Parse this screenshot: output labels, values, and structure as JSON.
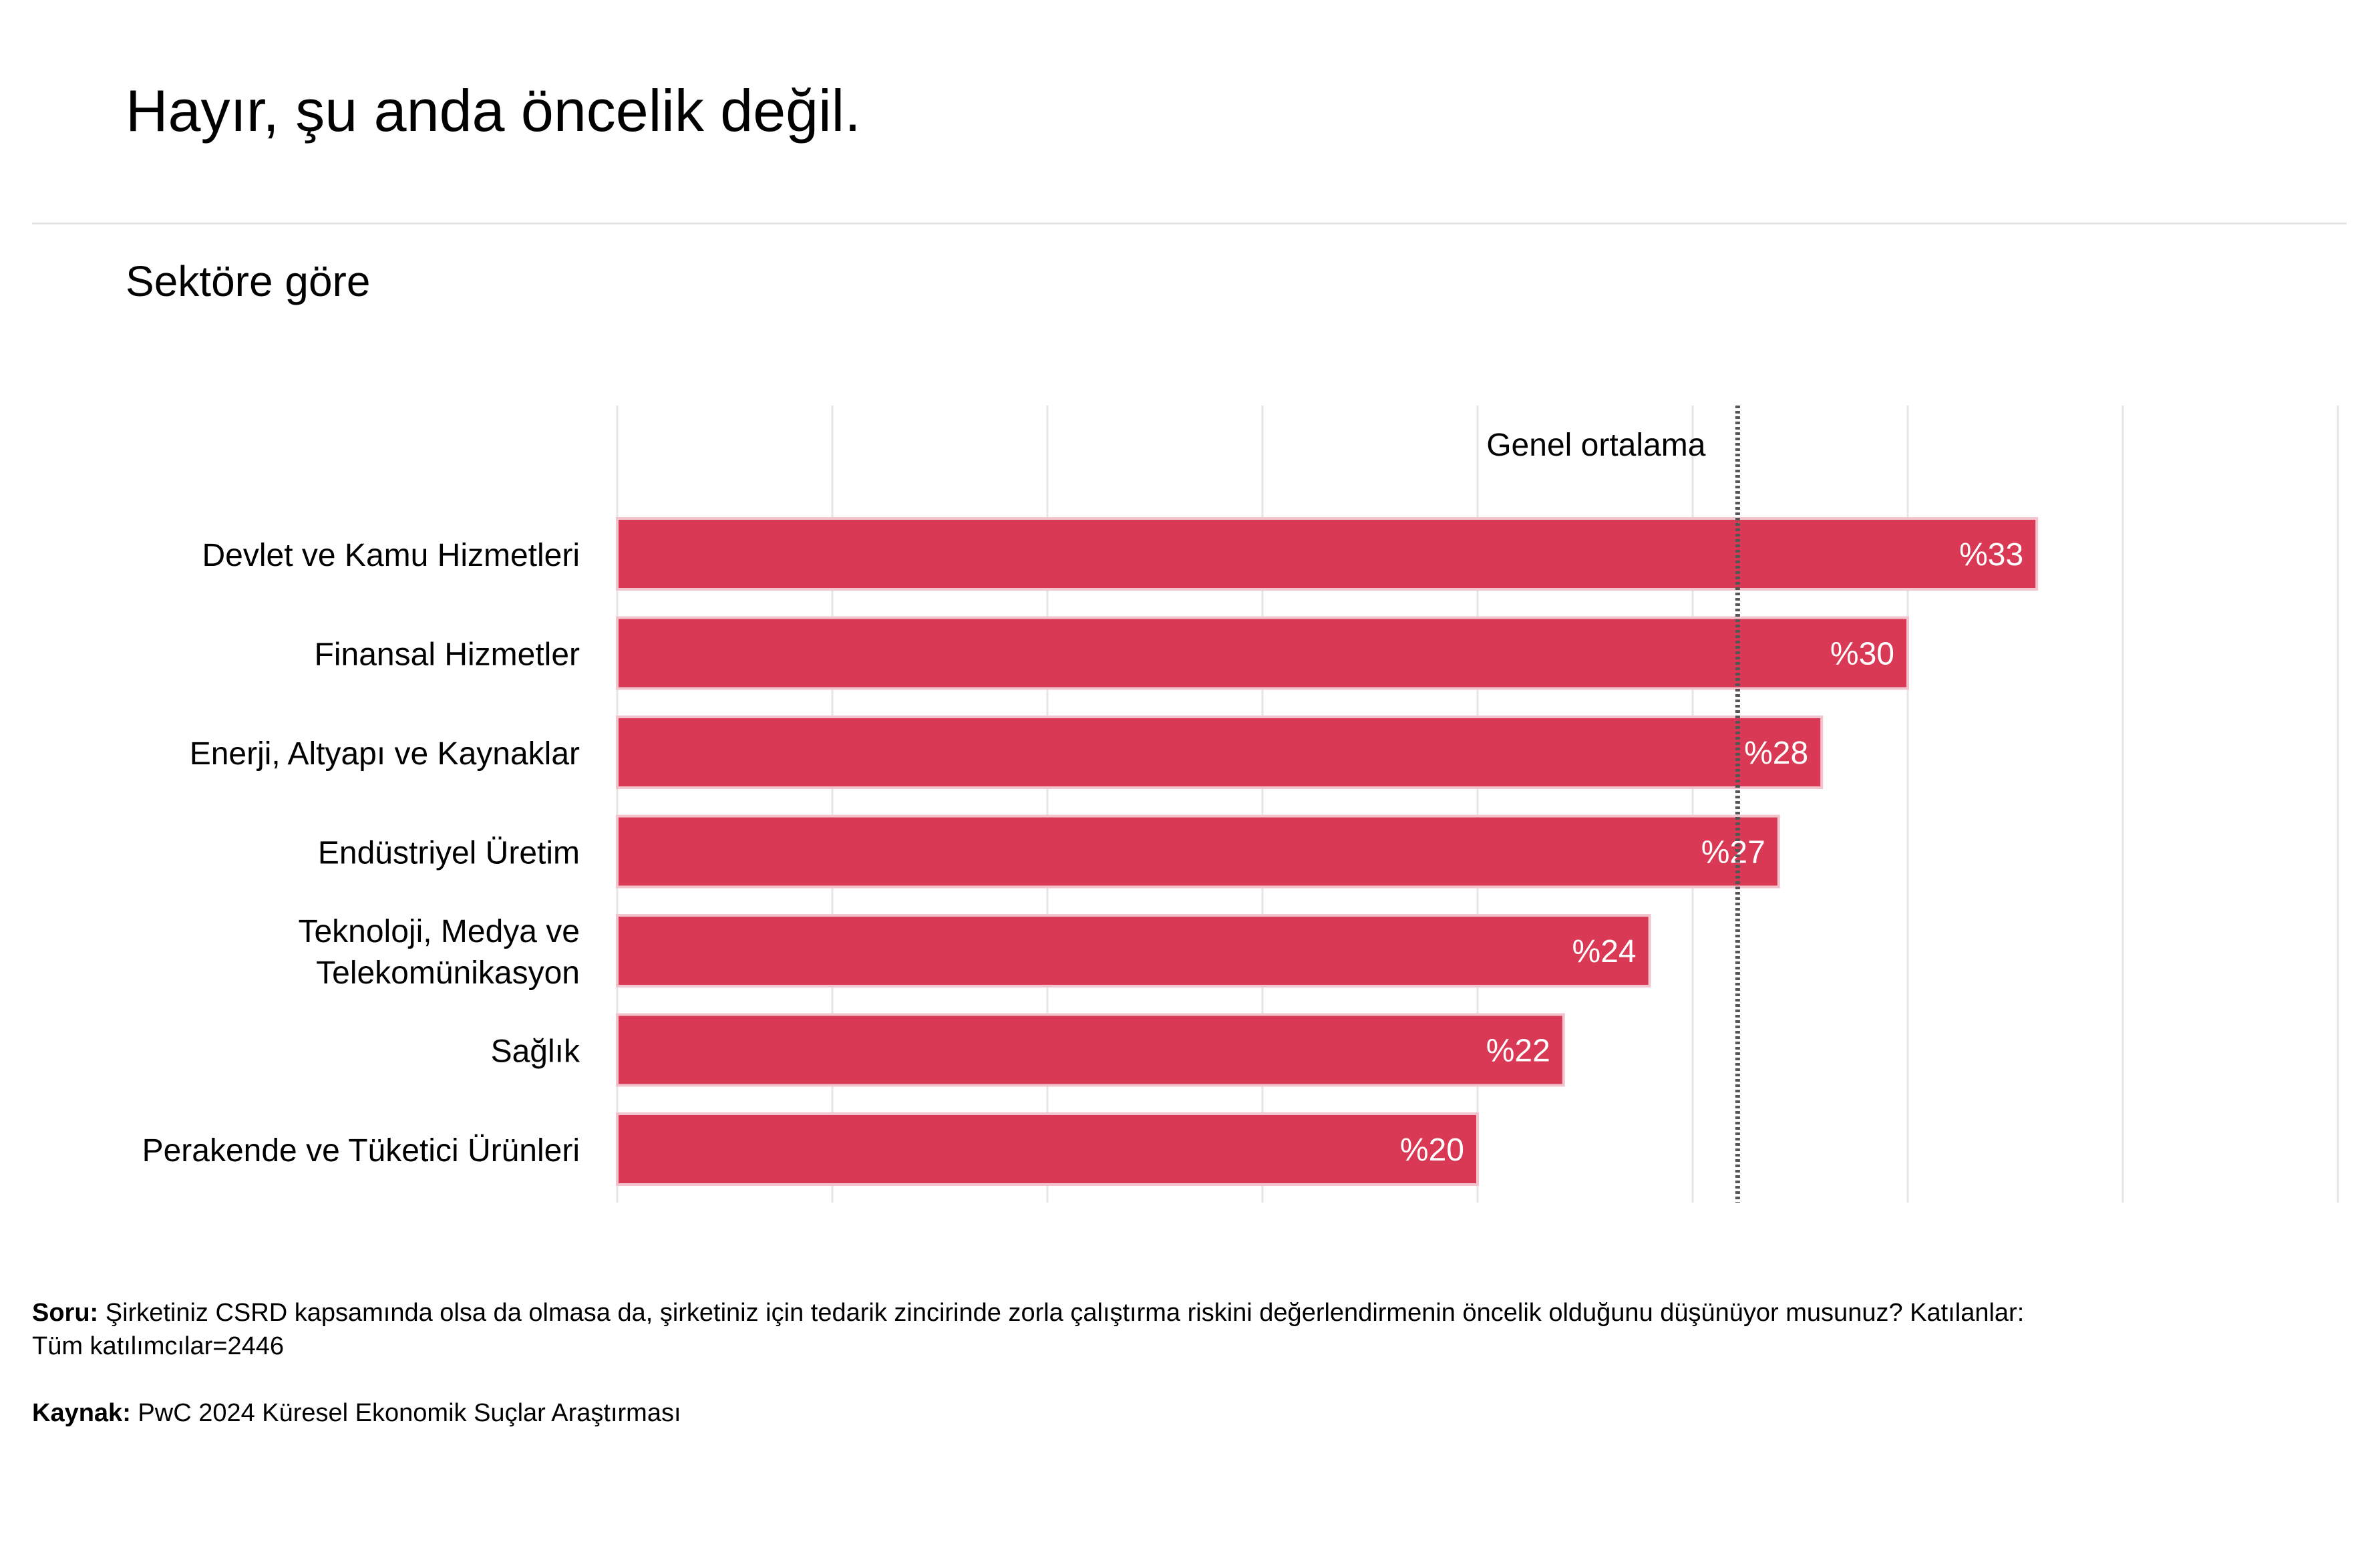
{
  "header": {
    "title": "Hayır, şu anda öncelik değil.",
    "subtitle": "Sektöre göre"
  },
  "chart_data": {
    "type": "bar",
    "orientation": "horizontal",
    "categories": [
      [
        "Devlet ve Kamu Hizmetleri"
      ],
      [
        "Finansal Hizmetler"
      ],
      [
        "Enerji, Altyapı ve Kaynaklar"
      ],
      [
        "Endüstriyel Üretim"
      ],
      [
        "Teknoloji, Medya ve",
        "Telekomünikasyon"
      ],
      [
        "Sağlık"
      ],
      [
        "Perakende ve Tüketici Ürünleri"
      ]
    ],
    "values": [
      33,
      30,
      28,
      27,
      24,
      22,
      20
    ],
    "value_labels": [
      "%33",
      "%30",
      "%28",
      "%27",
      "%24",
      "%22",
      "%20"
    ],
    "xlim": [
      0,
      40
    ],
    "grid_step": 5,
    "reference_line": {
      "label": "Genel ortalama",
      "value": 26
    },
    "grid": true,
    "colors": {
      "bar": "#d93954",
      "bar_border": "#f2c4cd",
      "value_label": "#ffffff",
      "grid": "#e6e6e6",
      "reference_line": "#555555"
    }
  },
  "footnotes": {
    "question_label": "Soru:",
    "question_line1": " Şirketiniz CSRD kapsamında olsa da olmasa da, şirketiniz için tedarik zincirinde zorla çalıştırma riskini değerlendirmenin öncelik olduğunu düşünüyor musunuz? Katılanlar:",
    "question_line2": "Tüm katılımcılar=2446",
    "source_label": "Kaynak:",
    "source_text": " PwC 2024 Küresel Ekonomik Suçlar Araştırması"
  }
}
